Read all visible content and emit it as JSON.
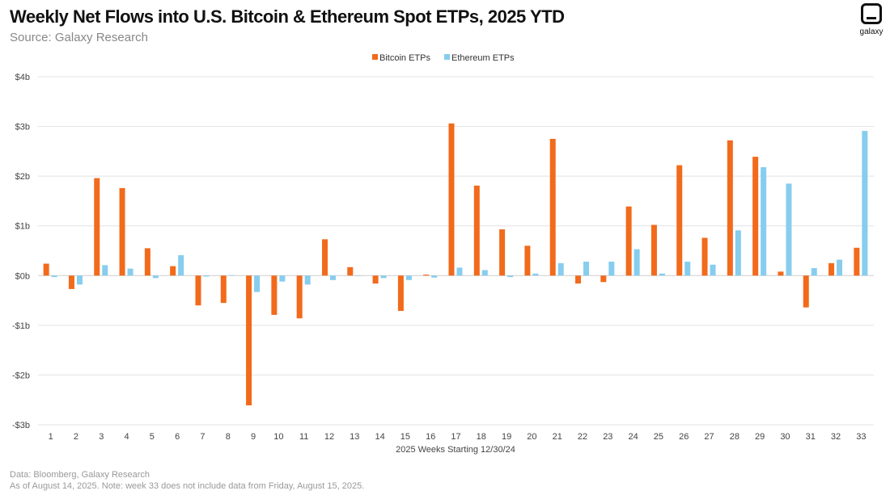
{
  "header": {
    "title": "Weekly Net Flows into U.S. Bitcoin & Ethereum Spot ETPs, 2025 YTD",
    "subtitle": "Source: Galaxy Research"
  },
  "logo": {
    "name": "galaxy-logo",
    "text": "galaxy"
  },
  "footer": {
    "line1": "Data: Bloomberg, Galaxy Research",
    "line2": "As of August 14, 2025. Note: week 33 does not include data from Friday, August 15, 2025."
  },
  "chart_data": {
    "type": "bar",
    "xlabel": "2025 Weeks Starting 12/30/24",
    "ylabel": "",
    "ylim": [
      -3,
      4
    ],
    "yticks": [
      4,
      3,
      2,
      1,
      0,
      -1,
      -2,
      -3
    ],
    "ytick_labels": [
      "$4b",
      "$3b",
      "$2b",
      "$1b",
      "$0b",
      "-$1b",
      "-$2b",
      "-$3b"
    ],
    "grid": true,
    "legend_position": "top-center",
    "categories": [
      "1",
      "2",
      "3",
      "4",
      "5",
      "6",
      "7",
      "8",
      "9",
      "10",
      "11",
      "12",
      "13",
      "14",
      "15",
      "16",
      "17",
      "18",
      "19",
      "20",
      "21",
      "22",
      "23",
      "24",
      "25",
      "26",
      "27",
      "28",
      "29",
      "30",
      "31",
      "32",
      "33"
    ],
    "series": [
      {
        "name": "Bitcoin ETPs",
        "color": "#F26A1B",
        "values": [
          0.24,
          -0.27,
          1.96,
          1.76,
          0.55,
          0.19,
          -0.6,
          -0.55,
          -2.61,
          -0.79,
          -0.86,
          0.73,
          0.17,
          -0.16,
          -0.71,
          0.02,
          3.06,
          1.81,
          0.93,
          0.6,
          2.75,
          -0.16,
          -0.13,
          1.39,
          1.02,
          2.22,
          0.76,
          2.72,
          2.39,
          0.08,
          -0.64,
          0.25,
          0.56
        ]
      },
      {
        "name": "Ethereum ETPs",
        "color": "#86CDEE",
        "values": [
          -0.03,
          -0.18,
          0.21,
          0.14,
          -0.05,
          0.41,
          -0.02,
          0.01,
          -0.33,
          -0.12,
          -0.18,
          -0.09,
          0.0,
          -0.05,
          -0.09,
          -0.04,
          0.16,
          0.11,
          -0.03,
          0.04,
          0.25,
          0.28,
          0.28,
          0.53,
          0.04,
          0.28,
          0.22,
          0.91,
          2.18,
          1.85,
          0.15,
          0.32,
          2.91
        ]
      }
    ]
  }
}
